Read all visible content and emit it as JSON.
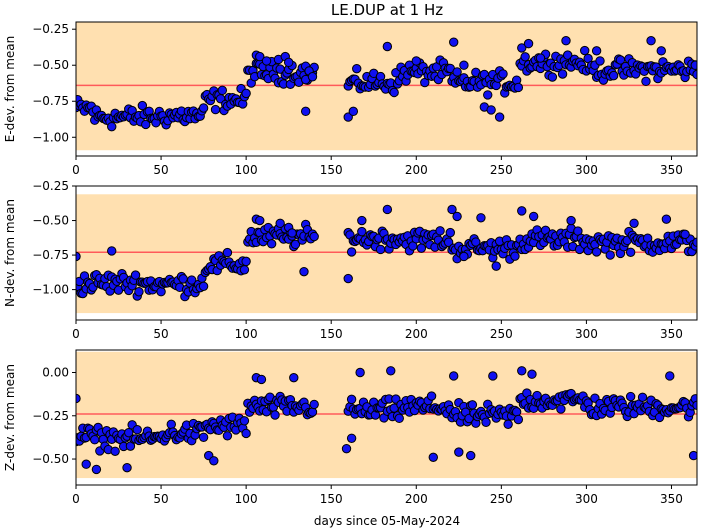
{
  "title": "LE.DUP at 1 Hz",
  "xlabel": "days since 05-May-2024",
  "colors": {
    "band": "#ffe0b0",
    "marker": "#1010f0",
    "edge": "#000000",
    "meanline": "#ff5a5a"
  },
  "chart_data": [
    {
      "type": "scatter",
      "ylabel": "E-dev. from mean",
      "xlim": [
        0,
        365
      ],
      "ylim": [
        -1.13,
        -0.2
      ],
      "xticks": [
        0,
        50,
        100,
        150,
        200,
        250,
        300,
        350
      ],
      "yticks": [
        -1.0,
        -0.75,
        -0.5,
        -0.25
      ],
      "band": [
        -1.09,
        -0.19
      ],
      "mean": -0.64,
      "segments": [
        [
          0,
          10,
          -0.8
        ],
        [
          10,
          50,
          -0.86
        ],
        [
          50,
          75,
          -0.85
        ],
        [
          75,
          100,
          -0.74
        ],
        [
          100,
          140,
          -0.55
        ],
        [
          160,
          190,
          -0.62
        ],
        [
          190,
          220,
          -0.55
        ],
        [
          220,
          260,
          -0.62
        ],
        [
          260,
          300,
          -0.48
        ],
        [
          300,
          365,
          -0.53
        ]
      ],
      "skip": [
        141,
        159
      ],
      "points": [
        [
          106,
          -0.43
        ],
        [
          108,
          -0.44
        ],
        [
          112,
          -0.47
        ],
        [
          119,
          -0.46
        ],
        [
          123,
          -0.44
        ],
        [
          125,
          -0.48
        ],
        [
          135,
          -0.6
        ],
        [
          137,
          -0.54
        ],
        [
          139,
          -0.58
        ],
        [
          135,
          -0.82
        ],
        [
          160,
          -0.86
        ],
        [
          163,
          -0.82
        ],
        [
          183,
          -0.37
        ],
        [
          200,
          -0.47
        ],
        [
          222,
          -0.34
        ],
        [
          228,
          -0.5
        ],
        [
          240,
          -0.79
        ],
        [
          244,
          -0.81
        ],
        [
          249,
          -0.86
        ],
        [
          262,
          -0.38
        ],
        [
          266,
          -0.35
        ],
        [
          273,
          -0.45
        ],
        [
          288,
          -0.33
        ],
        [
          306,
          -0.4
        ],
        [
          338,
          -0.33
        ],
        [
          344,
          -0.4
        ],
        [
          364,
          -0.5
        ]
      ]
    },
    {
      "type": "scatter",
      "ylabel": "N-dev. from mean",
      "xlim": [
        0,
        365
      ],
      "ylim": [
        -1.22,
        -0.25
      ],
      "xticks": [
        0,
        50,
        100,
        150,
        200,
        250,
        300,
        350
      ],
      "yticks": [
        -1.0,
        -0.75,
        -0.5,
        -0.25
      ],
      "band": [
        -1.17,
        -0.31
      ],
      "mean": -0.73,
      "segments": [
        [
          0,
          10,
          -0.96
        ],
        [
          10,
          40,
          -0.95
        ],
        [
          40,
          75,
          -0.96
        ],
        [
          75,
          100,
          -0.82
        ],
        [
          100,
          140,
          -0.62
        ],
        [
          160,
          190,
          -0.63
        ],
        [
          190,
          220,
          -0.64
        ],
        [
          220,
          260,
          -0.7
        ],
        [
          260,
          300,
          -0.64
        ],
        [
          300,
          365,
          -0.66
        ]
      ],
      "skip": [
        141,
        159
      ],
      "points": [
        [
          0,
          -0.76
        ],
        [
          21,
          -0.72
        ],
        [
          106,
          -0.49
        ],
        [
          108,
          -0.5
        ],
        [
          120,
          -0.52
        ],
        [
          125,
          -0.55
        ],
        [
          127,
          -0.59
        ],
        [
          134,
          -0.87
        ],
        [
          160,
          -0.92
        ],
        [
          168,
          -0.5
        ],
        [
          183,
          -0.42
        ],
        [
          221,
          -0.42
        ],
        [
          224,
          -0.47
        ],
        [
          228,
          -0.76
        ],
        [
          238,
          -0.48
        ],
        [
          247,
          -0.83
        ],
        [
          262,
          -0.43
        ],
        [
          269,
          -0.47
        ],
        [
          291,
          -0.5
        ],
        [
          328,
          -0.52
        ],
        [
          347,
          -0.49
        ],
        [
          358,
          -0.6
        ]
      ]
    },
    {
      "type": "scatter",
      "ylabel": "Z-dev. from mean",
      "xlim": [
        0,
        365
      ],
      "ylim": [
        -0.65,
        0.13
      ],
      "xticks": [
        0,
        50,
        100,
        150,
        200,
        250,
        300,
        350
      ],
      "yticks": [
        -0.5,
        -0.25,
        0.0
      ],
      "band": [
        -0.61,
        0.12
      ],
      "mean": -0.24,
      "segments": [
        [
          0,
          10,
          -0.37
        ],
        [
          10,
          50,
          -0.38
        ],
        [
          50,
          75,
          -0.35
        ],
        [
          75,
          100,
          -0.31
        ],
        [
          100,
          140,
          -0.2
        ],
        [
          160,
          190,
          -0.22
        ],
        [
          190,
          220,
          -0.2
        ],
        [
          220,
          260,
          -0.25
        ],
        [
          260,
          300,
          -0.16
        ],
        [
          300,
          365,
          -0.2
        ]
      ],
      "skip": [
        141,
        159
      ],
      "points": [
        [
          0,
          -0.15
        ],
        [
          6,
          -0.53
        ],
        [
          12,
          -0.56
        ],
        [
          30,
          -0.55
        ],
        [
          78,
          -0.48
        ],
        [
          81,
          -0.51
        ],
        [
          106,
          -0.03
        ],
        [
          109,
          -0.04
        ],
        [
          128,
          -0.03
        ],
        [
          159,
          -0.44
        ],
        [
          162,
          -0.38
        ],
        [
          167,
          0.0
        ],
        [
          185,
          0.01
        ],
        [
          210,
          -0.49
        ],
        [
          222,
          -0.02
        ],
        [
          225,
          -0.46
        ],
        [
          232,
          -0.48
        ],
        [
          245,
          -0.02
        ],
        [
          262,
          0.01
        ],
        [
          268,
          -0.01
        ],
        [
          349,
          -0.02
        ],
        [
          363,
          -0.48
        ]
      ]
    }
  ]
}
